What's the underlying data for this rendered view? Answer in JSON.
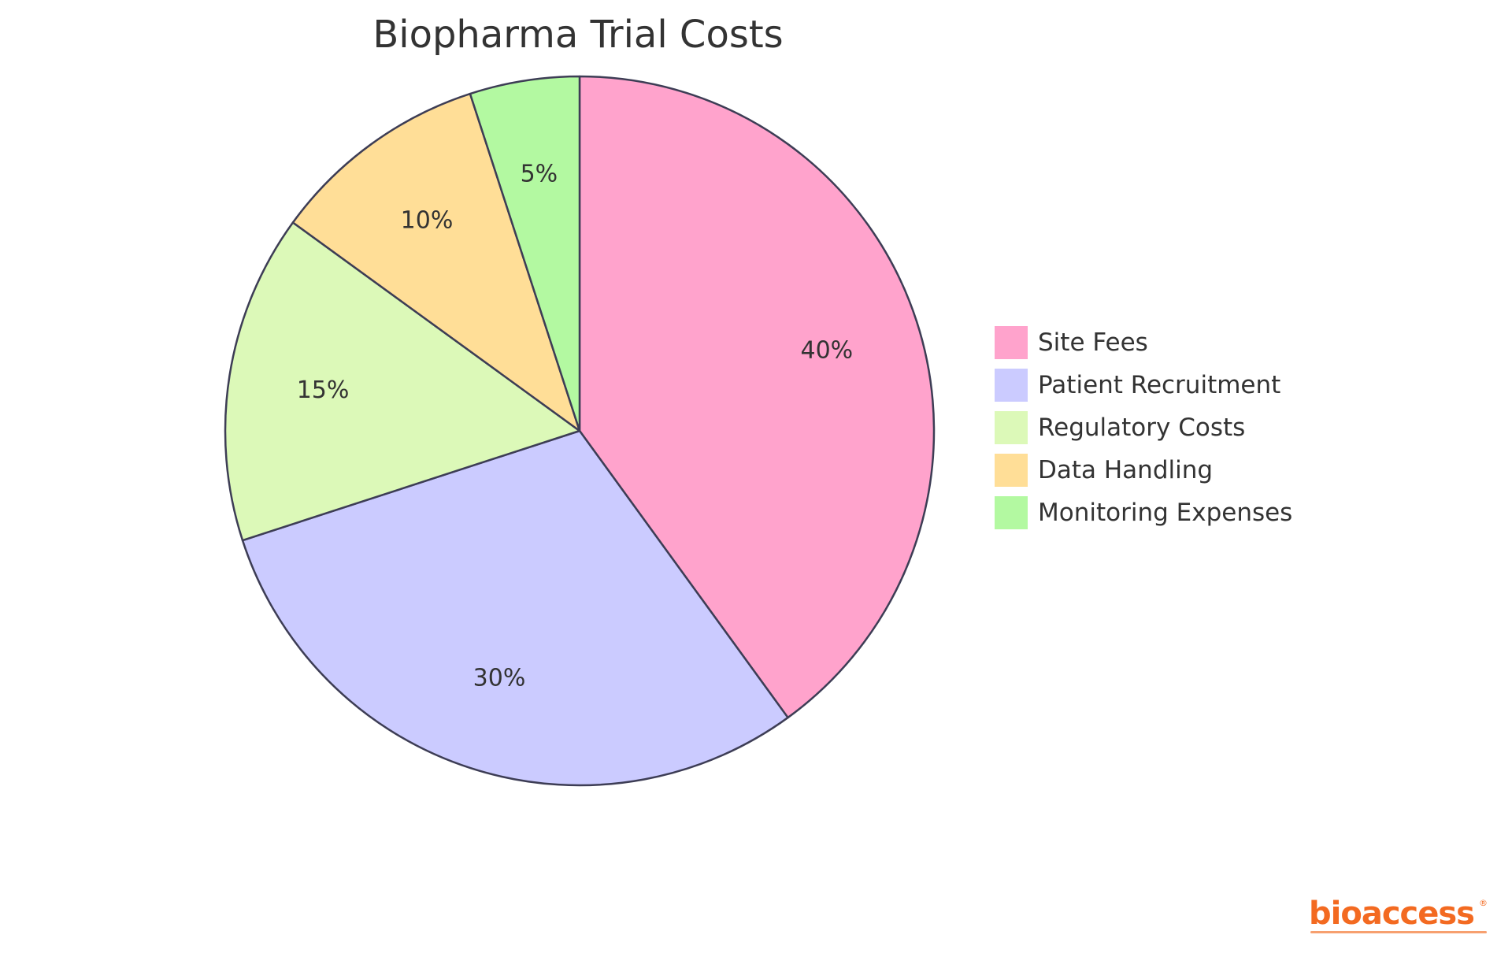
{
  "chart_data": {
    "type": "pie",
    "title": "Biopharma Trial Costs",
    "slices": [
      {
        "name": "Site Fees",
        "value": 40,
        "label": "40%",
        "color": "#ffa3cc"
      },
      {
        "name": "Patient Recruitment",
        "value": 30,
        "label": "30%",
        "color": "#cbcbff"
      },
      {
        "name": "Regulatory Costs",
        "value": 15,
        "label": "15%",
        "color": "#dcf9b8"
      },
      {
        "name": "Data Handling",
        "value": 10,
        "label": "10%",
        "color": "#ffde97"
      },
      {
        "name": "Monitoring Expenses",
        "value": 5,
        "label": "5%",
        "color": "#b3f9a1"
      }
    ],
    "start_angle": "12 o'clock",
    "direction": "clockwise",
    "legend_position": "right",
    "stroke_color": "#3d3d55"
  },
  "logo": {
    "text": "bioaccess",
    "reg_mark": "®",
    "color": "#f36a21"
  }
}
